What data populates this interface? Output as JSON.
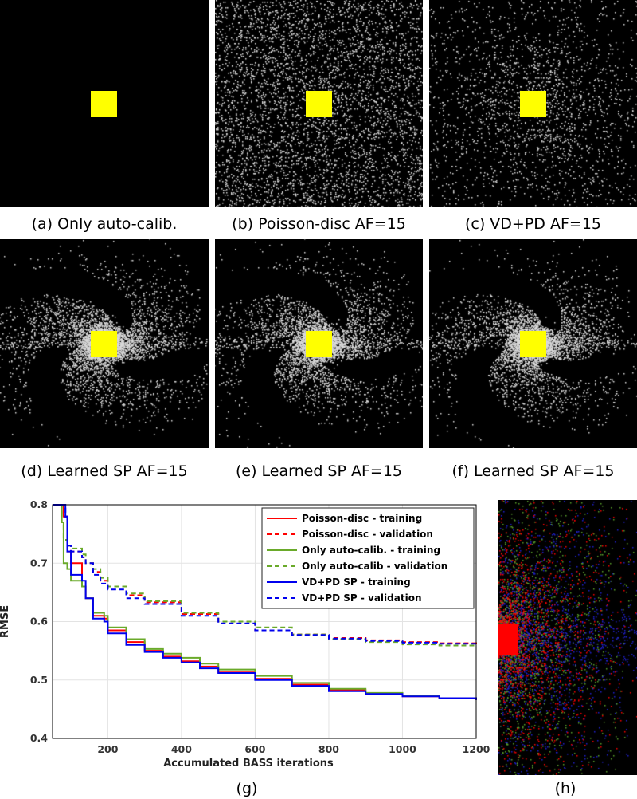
{
  "panels": [
    {
      "id": "a",
      "caption": "(a) Only auto-calib.",
      "pattern": "acs-only"
    },
    {
      "id": "b",
      "caption": "(b) Poisson-disc AF=15",
      "pattern": "uniform"
    },
    {
      "id": "c",
      "caption": "(c) VD+PD AF=15",
      "pattern": "variable-density"
    },
    {
      "id": "d",
      "caption": "(d) Learned SP AF=15",
      "pattern": "learned"
    },
    {
      "id": "e",
      "caption": "(e) Learned SP AF=15",
      "pattern": "learned"
    },
    {
      "id": "f",
      "caption": "(f) Learned SP AF=15",
      "pattern": "learned"
    }
  ],
  "panel_h_caption": "(h)",
  "chart_caption": "(g)",
  "colors": {
    "background": "#000000",
    "acs": "#ffff00",
    "sample_dots": "#d8d8d8",
    "overlay_red": "#ff0000",
    "overlay_green": "#5aa02c",
    "overlay_blue": "#2020d0"
  },
  "chart_data": {
    "type": "line",
    "xlabel": "Accumulated BASS iterations",
    "ylabel": "RMSE",
    "xlim": [
      0,
      1200
    ],
    "ylim": [
      0.4,
      0.8
    ],
    "xticks": [
      200,
      400,
      600,
      800,
      1000,
      1200
    ],
    "yticks": [
      0.4,
      0.5,
      0.6,
      0.7,
      0.8
    ],
    "grid": true,
    "legend_position": "top-right",
    "series": [
      {
        "name": "Poisson-disc - training",
        "color": "#ff0000",
        "dash": "solid",
        "x": [
          50,
          80,
          90,
          100,
          130,
          140,
          160,
          190,
          200,
          250,
          300,
          350,
          400,
          450,
          500,
          600,
          700,
          800,
          900,
          1000,
          1100,
          1200
        ],
        "y": [
          0.8,
          0.78,
          0.72,
          0.7,
          0.66,
          0.64,
          0.61,
          0.605,
          0.585,
          0.565,
          0.55,
          0.54,
          0.532,
          0.523,
          0.513,
          0.502,
          0.492,
          0.483,
          0.476,
          0.472,
          0.469,
          0.466
        ]
      },
      {
        "name": "Poisson-disc - validation",
        "color": "#ff0000",
        "dash": "dashed",
        "x": [
          50,
          80,
          90,
          100,
          130,
          140,
          160,
          180,
          200,
          250,
          300,
          400,
          500,
          600,
          700,
          800,
          900,
          1000,
          1100,
          1200
        ],
        "y": [
          0.8,
          0.78,
          0.73,
          0.72,
          0.71,
          0.7,
          0.685,
          0.67,
          0.66,
          0.645,
          0.633,
          0.613,
          0.6,
          0.585,
          0.578,
          0.572,
          0.568,
          0.565,
          0.563,
          0.562
        ]
      },
      {
        "name": "Only auto-calib. - training",
        "color": "#6aaa2a",
        "dash": "solid",
        "x": [
          50,
          75,
          80,
          90,
          100,
          130,
          140,
          160,
          190,
          200,
          250,
          300,
          350,
          400,
          450,
          500,
          600,
          700,
          800,
          900,
          1000,
          1100,
          1200
        ],
        "y": [
          0.8,
          0.77,
          0.7,
          0.69,
          0.67,
          0.66,
          0.64,
          0.615,
          0.61,
          0.59,
          0.57,
          0.553,
          0.545,
          0.538,
          0.528,
          0.518,
          0.507,
          0.495,
          0.485,
          0.478,
          0.473,
          0.469,
          0.467
        ]
      },
      {
        "name": "Only auto-calib - validation",
        "color": "#6aaa2a",
        "dash": "dashed",
        "x": [
          50,
          75,
          80,
          90,
          100,
          130,
          140,
          160,
          180,
          200,
          250,
          300,
          400,
          500,
          600,
          700,
          800,
          900,
          1000,
          1100,
          1200
        ],
        "y": [
          0.8,
          0.77,
          0.74,
          0.73,
          0.725,
          0.715,
          0.7,
          0.69,
          0.675,
          0.66,
          0.648,
          0.635,
          0.615,
          0.6,
          0.59,
          0.578,
          0.57,
          0.565,
          0.561,
          0.559,
          0.558
        ]
      },
      {
        "name": "VD+PD SP - training",
        "color": "#0000ee",
        "dash": "solid",
        "x": [
          50,
          85,
          90,
          100,
          130,
          140,
          160,
          190,
          200,
          250,
          300,
          350,
          400,
          450,
          500,
          600,
          700,
          800,
          900,
          1000,
          1100,
          1200
        ],
        "y": [
          0.8,
          0.78,
          0.72,
          0.68,
          0.67,
          0.64,
          0.605,
          0.6,
          0.58,
          0.56,
          0.548,
          0.538,
          0.53,
          0.52,
          0.512,
          0.5,
          0.49,
          0.481,
          0.476,
          0.472,
          0.469,
          0.466
        ]
      },
      {
        "name": "VD+PD SP - validation",
        "color": "#0000ee",
        "dash": "dashed",
        "x": [
          50,
          85,
          90,
          100,
          130,
          140,
          160,
          180,
          200,
          250,
          300,
          400,
          500,
          600,
          700,
          800,
          900,
          1000,
          1100,
          1200
        ],
        "y": [
          0.8,
          0.78,
          0.73,
          0.72,
          0.71,
          0.7,
          0.68,
          0.665,
          0.655,
          0.64,
          0.63,
          0.61,
          0.597,
          0.585,
          0.577,
          0.571,
          0.567,
          0.564,
          0.562,
          0.562
        ]
      }
    ]
  }
}
